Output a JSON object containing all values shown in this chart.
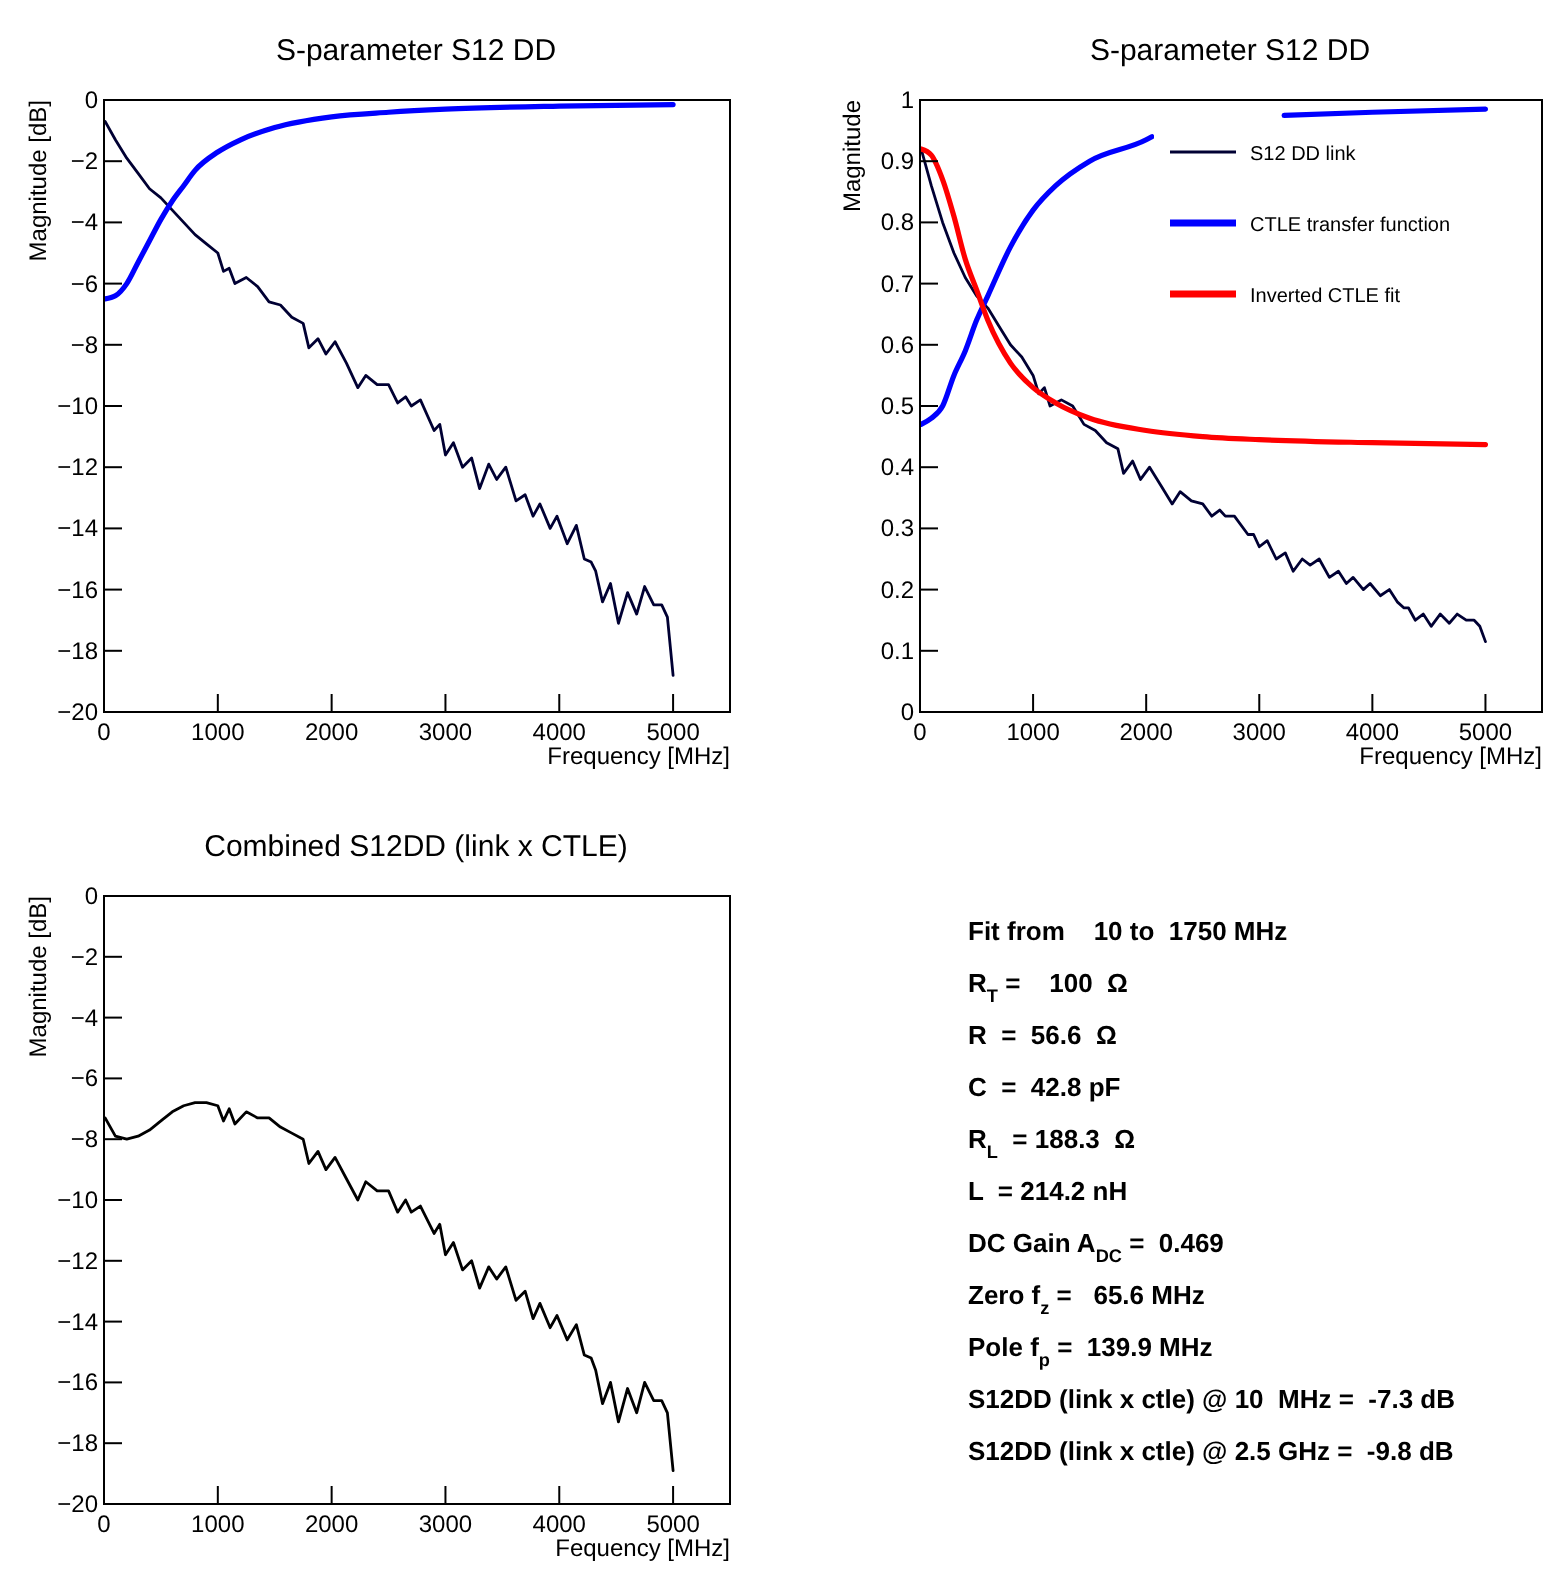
{
  "chart_data": [
    {
      "type": "line",
      "title": "S-parameter S12 DD",
      "xlabel": "Frequency [MHz]",
      "ylabel": "Magnitude [dB]",
      "xlim": [
        0,
        5500
      ],
      "xticks": [
        0,
        1000,
        2000,
        3000,
        4000,
        5000
      ],
      "ylim": [
        -20,
        0
      ],
      "yticks": [
        -20,
        -18,
        -16,
        -14,
        -12,
        -10,
        -8,
        -6,
        -4,
        -2,
        0
      ],
      "series": [
        {
          "color": "#000033",
          "x": [
            10,
            100,
            200,
            300,
            400,
            500,
            600,
            700,
            800,
            900,
            1000,
            1050,
            1100,
            1150,
            1250,
            1350,
            1450,
            1550,
            1650,
            1750,
            1800,
            1880,
            1950,
            2030,
            2130,
            2230,
            2300,
            2400,
            2500,
            2580,
            2650,
            2700,
            2780,
            2900,
            2950,
            3000,
            3070,
            3150,
            3230,
            3300,
            3380,
            3450,
            3530,
            3620,
            3700,
            3770,
            3830,
            3920,
            3980,
            4070,
            4150,
            4220,
            4280,
            4320,
            4380,
            4450,
            4520,
            4600,
            4680,
            4750,
            4830,
            4900,
            4950,
            5000
          ],
          "values": [
            -0.7,
            -1.3,
            -1.9,
            -2.4,
            -2.9,
            -3.2,
            -3.6,
            -4.0,
            -4.4,
            -4.7,
            -5.0,
            -5.6,
            -5.5,
            -6.0,
            -5.8,
            -6.1,
            -6.6,
            -6.7,
            -7.1,
            -7.3,
            -8.1,
            -7.8,
            -8.3,
            -7.9,
            -8.6,
            -9.4,
            -9.0,
            -9.3,
            -9.3,
            -9.9,
            -9.7,
            -10.0,
            -9.8,
            -10.8,
            -10.6,
            -11.6,
            -11.2,
            -12.0,
            -11.7,
            -12.7,
            -11.9,
            -12.4,
            -12.0,
            -13.1,
            -12.9,
            -13.6,
            -13.2,
            -14.0,
            -13.6,
            -14.5,
            -13.9,
            -15.0,
            -15.1,
            -15.4,
            -16.4,
            -15.8,
            -17.1,
            -16.1,
            -16.8,
            -15.9,
            -16.5,
            -16.5,
            -16.9,
            -18.8
          ]
        },
        {
          "color": "#0000ff",
          "x": [
            10,
            100,
            200,
            300,
            400,
            500,
            600,
            700,
            800,
            1000,
            1200,
            1500,
            2000,
            2500,
            3000,
            4000,
            5000
          ],
          "values": [
            -6.5,
            -6.4,
            -6.0,
            -5.3,
            -4.6,
            -3.9,
            -3.3,
            -2.8,
            -2.3,
            -1.7,
            -1.3,
            -0.9,
            -0.55,
            -0.4,
            -0.3,
            -0.2,
            -0.15
          ]
        }
      ]
    },
    {
      "type": "line",
      "title": "S-parameter S12 DD",
      "xlabel": "Frequency [MHz]",
      "ylabel": "Magnitude",
      "xlim": [
        0,
        5500
      ],
      "xticks": [
        0,
        1000,
        2000,
        3000,
        4000,
        5000
      ],
      "ylim": [
        0,
        1
      ],
      "yticks": [
        0,
        0.1,
        0.2,
        0.3,
        0.4,
        0.5,
        0.6,
        0.7,
        0.8,
        0.9,
        1
      ],
      "legend": "top right",
      "series": [
        {
          "name": "S12 DD link",
          "color": "#000033",
          "x": [
            10,
            100,
            200,
            300,
            400,
            500,
            600,
            700,
            800,
            900,
            1000,
            1050,
            1100,
            1150,
            1250,
            1350,
            1450,
            1550,
            1650,
            1750,
            1800,
            1880,
            1950,
            2030,
            2130,
            2230,
            2300,
            2400,
            2500,
            2580,
            2650,
            2700,
            2780,
            2900,
            2950,
            3000,
            3070,
            3150,
            3230,
            3300,
            3380,
            3450,
            3530,
            3620,
            3700,
            3770,
            3830,
            3920,
            3980,
            4070,
            4150,
            4220,
            4280,
            4320,
            4380,
            4450,
            4520,
            4600,
            4680,
            4750,
            4830,
            4900,
            4950,
            5000
          ],
          "values": [
            0.92,
            0.86,
            0.8,
            0.75,
            0.71,
            0.68,
            0.66,
            0.63,
            0.6,
            0.58,
            0.55,
            0.52,
            0.53,
            0.5,
            0.51,
            0.5,
            0.47,
            0.46,
            0.44,
            0.43,
            0.39,
            0.41,
            0.38,
            0.4,
            0.37,
            0.34,
            0.36,
            0.345,
            0.34,
            0.32,
            0.33,
            0.32,
            0.32,
            0.29,
            0.29,
            0.27,
            0.28,
            0.25,
            0.26,
            0.23,
            0.25,
            0.24,
            0.25,
            0.22,
            0.23,
            0.21,
            0.22,
            0.2,
            0.21,
            0.19,
            0.2,
            0.18,
            0.17,
            0.17,
            0.15,
            0.16,
            0.14,
            0.16,
            0.145,
            0.16,
            0.15,
            0.15,
            0.14,
            0.115
          ]
        },
        {
          "name": "CTLE transfer function",
          "color": "#0000ff",
          "x": [
            10,
            100,
            200,
            300,
            400,
            500,
            600,
            800,
            1000,
            1200,
            1500,
            2000,
            2050,
            2600,
            3220,
            4000,
            5000
          ],
          "values": [
            0.47,
            0.48,
            0.5,
            0.55,
            0.59,
            0.64,
            0.68,
            0.76,
            0.82,
            0.86,
            0.9,
            0.935,
            0.94,
            null,
            0.975,
            0.98,
            0.985
          ]
        },
        {
          "name": "Inverted CTLE fit",
          "color": "#ff0000",
          "x": [
            10,
            100,
            200,
            300,
            400,
            500,
            600,
            800,
            1000,
            1200,
            1500,
            2000,
            2500,
            3000,
            4000,
            5000
          ],
          "values": [
            0.92,
            0.91,
            0.87,
            0.81,
            0.74,
            0.69,
            0.64,
            0.57,
            0.53,
            0.505,
            0.48,
            0.46,
            0.45,
            0.445,
            0.44,
            0.437
          ]
        }
      ]
    },
    {
      "type": "line",
      "title": "Combined S12DD (link x CTLE)",
      "xlabel": "Fequency [MHz]",
      "ylabel": "Magnitude [dB]",
      "xlim": [
        0,
        5500
      ],
      "xticks": [
        0,
        1000,
        2000,
        3000,
        4000,
        5000
      ],
      "ylim": [
        -20,
        0
      ],
      "yticks": [
        -20,
        -18,
        -16,
        -14,
        -12,
        -10,
        -8,
        -6,
        -4,
        -2,
        0
      ],
      "series": [
        {
          "color": "#000000",
          "x": [
            10,
            100,
            200,
            300,
            400,
            500,
            600,
            700,
            800,
            900,
            1000,
            1050,
            1100,
            1150,
            1250,
            1350,
            1450,
            1550,
            1650,
            1750,
            1800,
            1880,
            1950,
            2030,
            2130,
            2230,
            2300,
            2400,
            2500,
            2580,
            2650,
            2700,
            2780,
            2900,
            2950,
            3000,
            3070,
            3150,
            3230,
            3300,
            3380,
            3450,
            3530,
            3620,
            3700,
            3770,
            3830,
            3920,
            3980,
            4070,
            4150,
            4220,
            4280,
            4320,
            4380,
            4450,
            4520,
            4600,
            4680,
            4750,
            4830,
            4900,
            4950,
            5000
          ],
          "values": [
            -7.3,
            -7.9,
            -8.0,
            -7.9,
            -7.7,
            -7.4,
            -7.1,
            -6.9,
            -6.8,
            -6.8,
            -6.9,
            -7.4,
            -7.0,
            -7.5,
            -7.1,
            -7.3,
            -7.3,
            -7.6,
            -7.8,
            -8.0,
            -8.8,
            -8.4,
            -9.0,
            -8.6,
            -9.3,
            -10.0,
            -9.4,
            -9.7,
            -9.7,
            -10.4,
            -10.0,
            -10.4,
            -10.2,
            -11.1,
            -10.8,
            -11.8,
            -11.4,
            -12.3,
            -12.0,
            -12.9,
            -12.2,
            -12.6,
            -12.2,
            -13.3,
            -13.0,
            -13.9,
            -13.4,
            -14.2,
            -13.8,
            -14.6,
            -14.1,
            -15.1,
            -15.2,
            -15.6,
            -16.7,
            -16.0,
            -17.3,
            -16.2,
            -17.0,
            -16.0,
            -16.6,
            -16.6,
            -17.0,
            -18.9
          ]
        }
      ]
    },
    {
      "type": "other",
      "annotations": [
        "Fit from    10 to  1750 MHz",
        "R$_{T}$ =    100  Ω",
        "R  =  56.6  Ω",
        "C  =  42.8 pF",
        "R$_{L}$  = 188.3  Ω",
        "L  = 214.2 nH",
        "DC Gain A$_{DC}$ =  0.469",
        "Zero f$_{z}$ =   65.6 MHz",
        "Pole f$_{p}$ =  139.9 MHz",
        "S12DD (link x ctle) @ 10  MHz =  -7.3 dB",
        "S12DD (link x ctle) @ 2.5 GHz =  -9.8 dB"
      ]
    }
  ]
}
